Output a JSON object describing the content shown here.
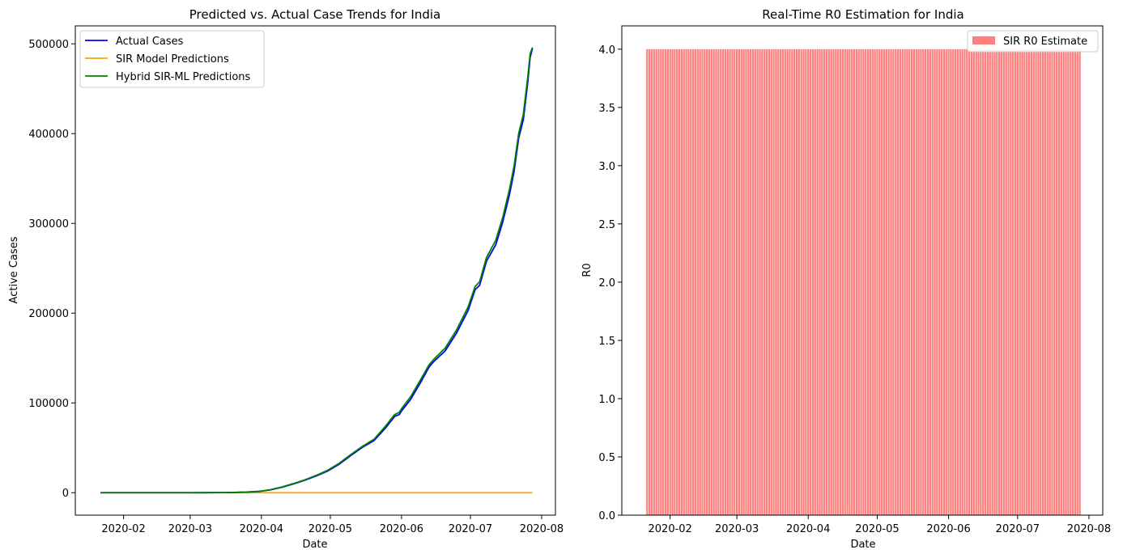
{
  "chart_data": [
    {
      "type": "line",
      "title": "Predicted vs. Actual Case Trends for India",
      "xlabel": "Date",
      "ylabel": "Active Cases",
      "x_range": [
        "2020-01-11",
        "2020-08-07"
      ],
      "ylim": [
        -25000,
        520000
      ],
      "x_ticks": [
        "2020-02",
        "2020-03",
        "2020-04",
        "2020-05",
        "2020-06",
        "2020-07",
        "2020-08"
      ],
      "y_ticks": [
        "0",
        "100000",
        "200000",
        "300000",
        "400000",
        "500000"
      ],
      "legend_position": "upper-left",
      "grid": false,
      "series": [
        {
          "name": "Actual Cases",
          "color": "#0000ff",
          "points": [
            [
              "2020-01-22",
              0
            ],
            [
              "2020-03-01",
              10
            ],
            [
              "2020-03-15",
              120
            ],
            [
              "2020-03-20",
              270
            ],
            [
              "2020-03-25",
              620
            ],
            [
              "2020-03-31",
              1400
            ],
            [
              "2020-04-05",
              3200
            ],
            [
              "2020-04-10",
              6100
            ],
            [
              "2020-04-15",
              9800
            ],
            [
              "2020-04-20",
              13900
            ],
            [
              "2020-04-25",
              18800
            ],
            [
              "2020-04-30",
              24300
            ],
            [
              "2020-05-05",
              31900
            ],
            [
              "2020-05-10",
              41500
            ],
            [
              "2020-05-15",
              50600
            ],
            [
              "2020-05-20",
              58000
            ],
            [
              "2020-05-25",
              72000
            ],
            [
              "2020-05-29",
              85000
            ],
            [
              "2020-05-31",
              87000
            ],
            [
              "2020-06-01",
              91000
            ],
            [
              "2020-06-05",
              104000
            ],
            [
              "2020-06-10",
              126000
            ],
            [
              "2020-06-13",
              140000
            ],
            [
              "2020-06-15",
              146000
            ],
            [
              "2020-06-20",
              158000
            ],
            [
              "2020-06-25",
              178000
            ],
            [
              "2020-06-30",
              203000
            ],
            [
              "2020-07-03",
              226000
            ],
            [
              "2020-07-05",
              231000
            ],
            [
              "2020-07-08",
              258000
            ],
            [
              "2020-07-12",
              276000
            ],
            [
              "2020-07-15",
              301000
            ],
            [
              "2020-07-18",
              332000
            ],
            [
              "2020-07-20",
              358000
            ],
            [
              "2020-07-22",
              395000
            ],
            [
              "2020-07-24",
              415000
            ],
            [
              "2020-07-26",
              458000
            ],
            [
              "2020-07-27",
              485000
            ],
            [
              "2020-07-28",
              495000
            ]
          ]
        },
        {
          "name": "SIR Model Predictions",
          "color": "#ffa500",
          "points": [
            [
              "2020-01-22",
              0
            ],
            [
              "2020-07-28",
              0
            ]
          ]
        },
        {
          "name": "Hybrid SIR-ML Predictions",
          "color": "#008000",
          "points": [
            [
              "2020-01-22",
              0
            ],
            [
              "2020-03-01",
              10
            ],
            [
              "2020-03-15",
              120
            ],
            [
              "2020-03-20",
              300
            ],
            [
              "2020-03-25",
              650
            ],
            [
              "2020-03-31",
              1500
            ],
            [
              "2020-04-05",
              3400
            ],
            [
              "2020-04-10",
              6400
            ],
            [
              "2020-04-15",
              10200
            ],
            [
              "2020-04-20",
              14400
            ],
            [
              "2020-04-25",
              19400
            ],
            [
              "2020-04-30",
              25200
            ],
            [
              "2020-05-05",
              33000
            ],
            [
              "2020-05-10",
              42600
            ],
            [
              "2020-05-15",
              51700
            ],
            [
              "2020-05-20",
              59400
            ],
            [
              "2020-05-25",
              74000
            ],
            [
              "2020-05-29",
              87000
            ],
            [
              "2020-05-31",
              89500
            ],
            [
              "2020-06-01",
              93500
            ],
            [
              "2020-06-05",
              107000
            ],
            [
              "2020-06-10",
              129000
            ],
            [
              "2020-06-13",
              142500
            ],
            [
              "2020-06-15",
              148500
            ],
            [
              "2020-06-20",
              161000
            ],
            [
              "2020-06-25",
              181500
            ],
            [
              "2020-06-30",
              207000
            ],
            [
              "2020-07-03",
              229500
            ],
            [
              "2020-07-05",
              235000
            ],
            [
              "2020-07-08",
              262000
            ],
            [
              "2020-07-12",
              281000
            ],
            [
              "2020-07-15",
              306000
            ],
            [
              "2020-07-18",
              338000
            ],
            [
              "2020-07-20",
              364000
            ],
            [
              "2020-07-22",
              400000
            ],
            [
              "2020-07-24",
              421000
            ],
            [
              "2020-07-26",
              464000
            ],
            [
              "2020-07-27",
              489000
            ],
            [
              "2020-07-28",
              496000
            ]
          ]
        }
      ]
    },
    {
      "type": "bar",
      "title": "Real-Time R0 Estimation for India",
      "xlabel": "Date",
      "ylabel": "R0",
      "x_range": [
        "2020-01-11",
        "2020-08-07"
      ],
      "ylim": [
        0,
        4.2
      ],
      "x_ticks": [
        "2020-02",
        "2020-03",
        "2020-04",
        "2020-05",
        "2020-06",
        "2020-07",
        "2020-08"
      ],
      "y_ticks": [
        "0.0",
        "0.5",
        "1.0",
        "1.5",
        "2.0",
        "2.5",
        "3.0",
        "3.5",
        "4.0"
      ],
      "legend_position": "upper-right",
      "grid": false,
      "series": [
        {
          "name": "SIR R0 Estimate",
          "color": "#ff7f7f",
          "start_date": "2020-01-22",
          "end_date": "2020-07-28",
          "value": 4.0
        }
      ]
    }
  ]
}
